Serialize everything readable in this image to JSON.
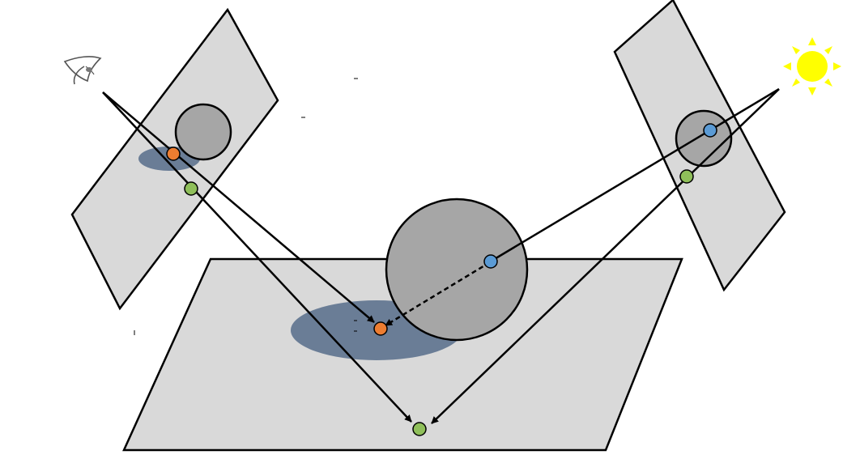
{
  "diagram": {
    "type": "shadow-mapping-illustration",
    "labels": [],
    "icons": {
      "eye": "eye-icon",
      "light": "sun-icon"
    },
    "colors": {
      "background": "#ffffff",
      "plane": "#d9d9d9",
      "sphere": "#a6a6a6",
      "shadow": "#6a7d96",
      "outline": "#000000",
      "shadow_point": "#ed7d31",
      "lit_point": "#8fbf5a",
      "light_point": "#5b9bd5",
      "sun": "#ffff00"
    }
  }
}
